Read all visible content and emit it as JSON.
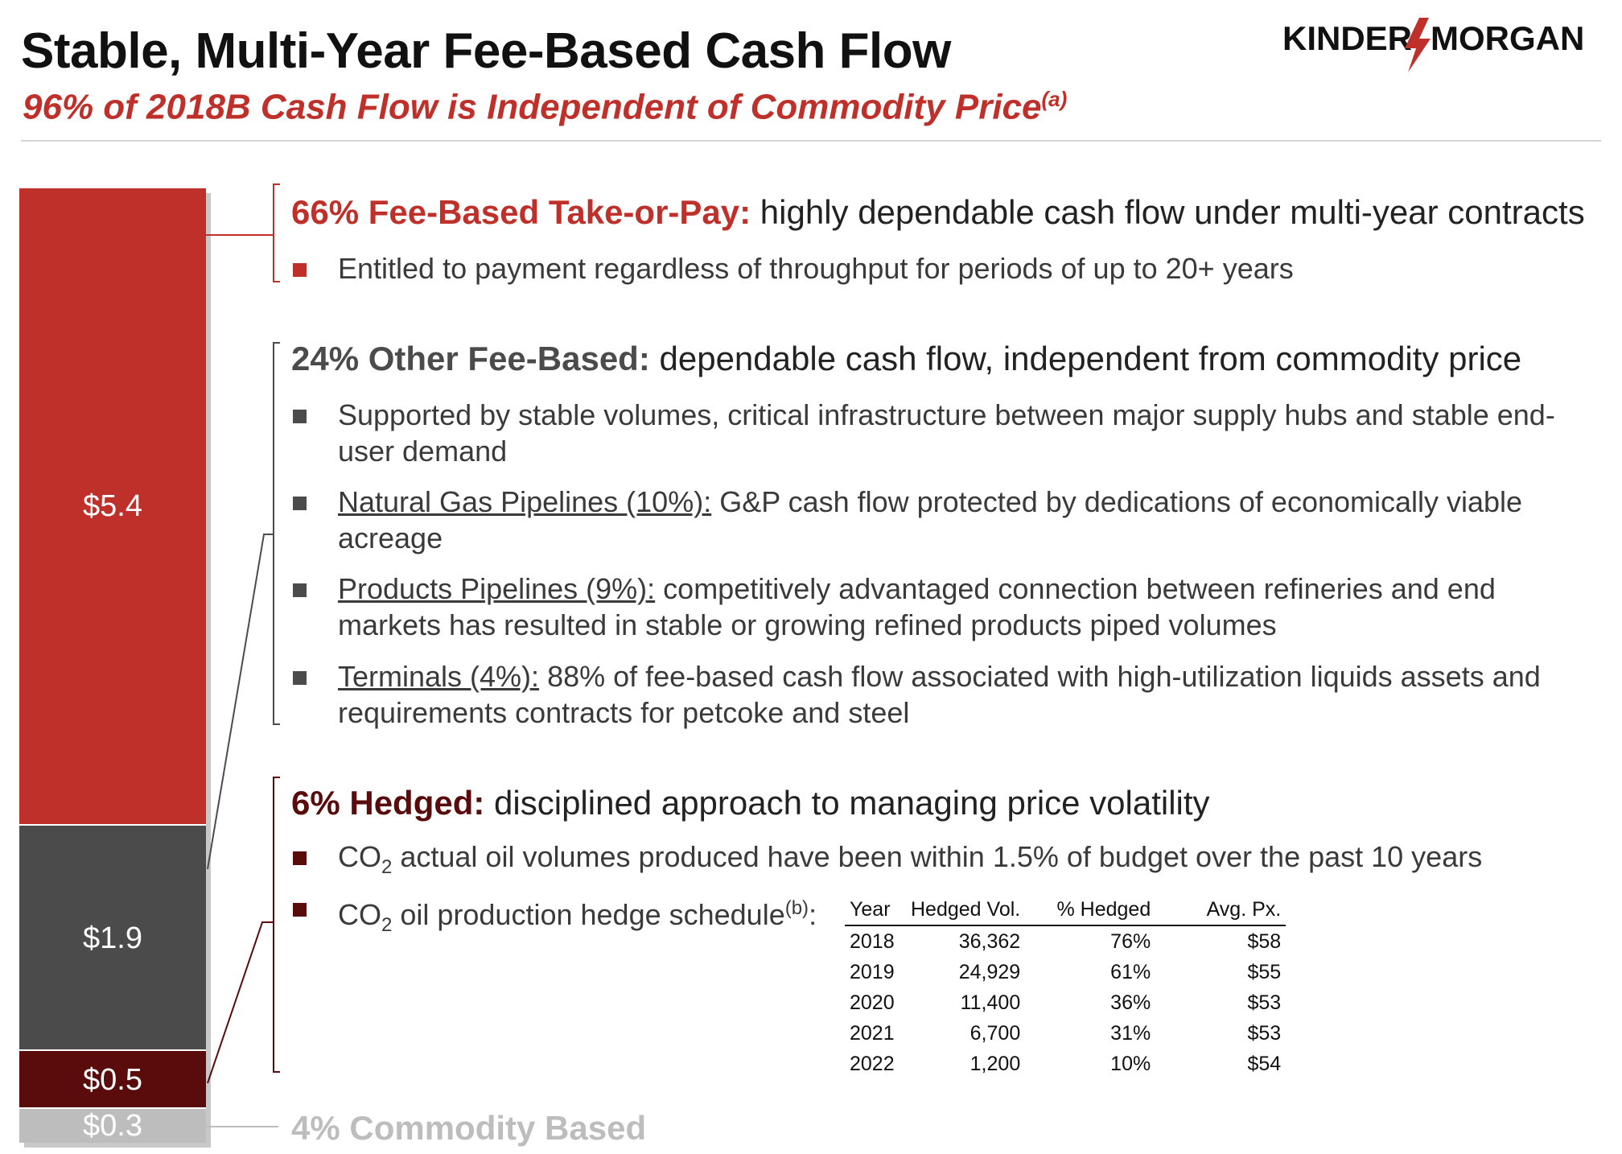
{
  "header": {
    "title": "Stable, Multi-Year Fee-Based Cash Flow",
    "subtitle": "96% of 2018B Cash Flow is Independent of Commodity Price",
    "subtitle_note": "(a)",
    "logo_left": "KINDER",
    "logo_right": "MORGAN"
  },
  "chart_data": {
    "type": "bar",
    "stacked": true,
    "categories": [
      ""
    ],
    "series": [
      {
        "name": "66% Fee-Based Take-or-Pay",
        "values": [
          5.4
        ],
        "label": "$5.4",
        "color": "#c0302b"
      },
      {
        "name": "24% Other Fee-Based",
        "values": [
          1.9
        ],
        "label": "$1.9",
        "color": "#4b4b4b"
      },
      {
        "name": "6% Hedged",
        "values": [
          0.5
        ],
        "label": "$0.5",
        "color": "#5a0c0c"
      },
      {
        "name": "4% Commodity Based",
        "values": [
          0.3
        ],
        "label": "$0.3",
        "color": "#bdbdbd"
      }
    ]
  },
  "sections": {
    "fee": {
      "head_bold": "66% Fee-Based Take-or-Pay:",
      "head_rest": " highly dependable cash flow under multi-year contracts",
      "bullets": [
        "Entitled to payment regardless of throughput for periods of up to 20+ years"
      ]
    },
    "other": {
      "head_bold": "24% Other Fee-Based:",
      "head_rest": " dependable cash flow, independent from commodity price",
      "bullet1": "Supported by stable volumes, critical infrastructure between major supply hubs and stable end-user demand",
      "bullet2_u": "Natural Gas Pipelines (10%):",
      "bullet2_rest": " G&P cash flow protected by dedications of economically viable acreage",
      "bullet3_u": "Products Pipelines (9%):",
      "bullet3_rest": " competitively advantaged connection between refineries and end markets has resulted in stable or growing refined products piped volumes",
      "bullet4_u": "Terminals (4%):",
      "bullet4_rest": " 88% of fee-based cash flow associated with high-utilization liquids assets and requirements contracts for petcoke and steel"
    },
    "hedged": {
      "head_bold": "6% Hedged:",
      "head_rest": " disciplined approach to managing price volatility",
      "bullet1_a": "CO",
      "bullet1_sub": "2",
      "bullet1_b": " actual oil volumes produced have been within 1.5% of budget over the past 10 years",
      "bullet2_a": "CO",
      "bullet2_sub": "2",
      "bullet2_b": " oil production hedge schedule",
      "bullet2_sup": "(b)",
      "bullet2_c": ":"
    },
    "commodity": {
      "head": "4% Commodity Based"
    }
  },
  "hedge_table": {
    "headers": [
      "Year",
      "Hedged Vol.",
      "% Hedged",
      "Avg. Px."
    ],
    "rows": [
      [
        "2018",
        "36,362",
        "76%",
        "$58"
      ],
      [
        "2019",
        "24,929",
        "61%",
        "$55"
      ],
      [
        "2020",
        "11,400",
        "36%",
        "$53"
      ],
      [
        "2021",
        "6,700",
        "31%",
        "$53"
      ],
      [
        "2022",
        "1,200",
        "10%",
        "$54"
      ]
    ]
  }
}
